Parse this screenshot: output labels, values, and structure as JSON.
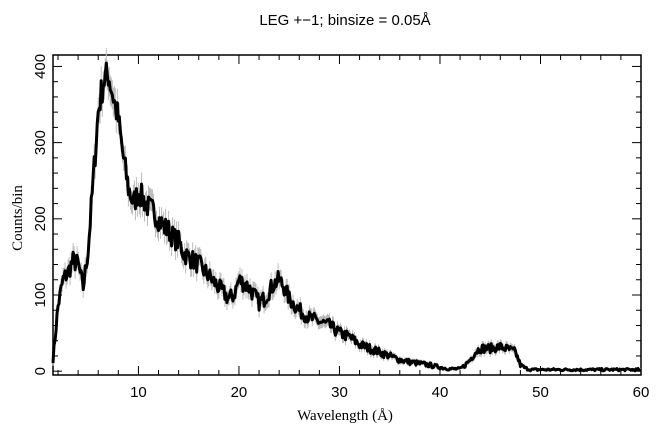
{
  "chart_data": {
    "type": "line",
    "title": "LEG +−1; binsize = 0.05Å",
    "xlabel": "Wavelength (Å)",
    "ylabel": "Counts/bin",
    "xlim": [
      1.5,
      60
    ],
    "ylim": [
      -5,
      415
    ],
    "x_ticks": [
      10,
      20,
      30,
      40,
      50,
      60
    ],
    "y_ticks": [
      0,
      100,
      200,
      300,
      400
    ],
    "grid": false,
    "series": [
      {
        "x": [
          1.5,
          2,
          2.5,
          3,
          3.5,
          4,
          4.5,
          5,
          5.5,
          6,
          6.5,
          7,
          7.5,
          8,
          8.5,
          9,
          9.5,
          10,
          10.5,
          11,
          11.5,
          12,
          12.5,
          13,
          13.5,
          14,
          14.5,
          15,
          16,
          17,
          18,
          19,
          19.5,
          20,
          20.5,
          21,
          21.5,
          22,
          22.5,
          23,
          23.5,
          24,
          24.5,
          25,
          26,
          27,
          28,
          29,
          30,
          31,
          32,
          33,
          34,
          35,
          36,
          37,
          38,
          39,
          40,
          41,
          42,
          42.5,
          43,
          43.5,
          44,
          45,
          46,
          47,
          47.5,
          48,
          48.5,
          49,
          50,
          55,
          60
        ],
        "y": [
          15,
          85,
          120,
          130,
          145,
          140,
          110,
          160,
          250,
          340,
          380,
          390,
          360,
          330,
          280,
          240,
          220,
          235,
          225,
          215,
          210,
          200,
          190,
          185,
          175,
          170,
          155,
          150,
          140,
          125,
          110,
          95,
          100,
          120,
          115,
          110,
          100,
          90,
          95,
          105,
          115,
          120,
          110,
          95,
          80,
          70,
          65,
          60,
          50,
          45,
          35,
          30,
          25,
          20,
          15,
          12,
          10,
          8,
          5,
          3,
          3,
          8,
          15,
          25,
          30,
          30,
          32,
          28,
          25,
          8,
          4,
          2,
          2,
          2,
          2
        ]
      }
    ]
  }
}
